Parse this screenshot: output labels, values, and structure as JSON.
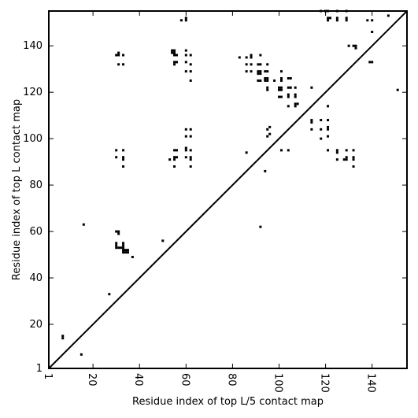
{
  "chart_data": {
    "type": "scatter",
    "title": "",
    "xlabel": "Residue index of top L/5 contact map",
    "ylabel": "Residue index of top L contact map",
    "xlim": [
      1,
      155
    ],
    "ylim": [
      1,
      155
    ],
    "xticks": [
      1,
      20,
      40,
      60,
      80,
      100,
      120,
      140
    ],
    "yticks": [
      1,
      20,
      40,
      60,
      80,
      100,
      120,
      140
    ],
    "grid": false,
    "diagonal": true,
    "marker": "square",
    "color": "#000000",
    "lower_points": [
      [
        7,
        14
      ],
      [
        7,
        15
      ],
      [
        15,
        7
      ],
      [
        16,
        63
      ],
      [
        27,
        33
      ],
      [
        30,
        60
      ],
      [
        31,
        60
      ],
      [
        31,
        59
      ],
      [
        30,
        55
      ],
      [
        30,
        54
      ],
      [
        30,
        53
      ],
      [
        31,
        53
      ],
      [
        32,
        53
      ],
      [
        33,
        55
      ],
      [
        33,
        54
      ],
      [
        33,
        53
      ],
      [
        33,
        52
      ],
      [
        34,
        52
      ],
      [
        35,
        52
      ],
      [
        34,
        51
      ],
      [
        33,
        51
      ],
      [
        35,
        51
      ],
      [
        37,
        49
      ],
      [
        50,
        56
      ],
      [
        92,
        62
      ]
    ],
    "upper_points": [
      [
        30,
        136
      ],
      [
        31,
        137
      ],
      [
        31,
        136
      ],
      [
        33,
        136
      ],
      [
        31,
        132
      ],
      [
        33,
        132
      ],
      [
        30,
        95
      ],
      [
        33,
        95
      ],
      [
        30,
        92
      ],
      [
        33,
        92
      ],
      [
        33,
        91
      ],
      [
        33,
        88
      ],
      [
        53,
        91
      ],
      [
        55,
        92
      ],
      [
        56,
        92
      ],
      [
        55,
        95
      ],
      [
        56,
        95
      ],
      [
        55,
        88
      ],
      [
        55,
        91
      ],
      [
        54,
        137
      ],
      [
        55,
        137
      ],
      [
        54,
        138
      ],
      [
        55,
        138
      ],
      [
        55,
        136
      ],
      [
        56,
        136
      ],
      [
        55,
        133
      ],
      [
        56,
        133
      ],
      [
        55,
        132
      ],
      [
        58,
        151
      ],
      [
        60,
        151
      ],
      [
        60,
        152
      ],
      [
        60,
        138
      ],
      [
        60,
        136
      ],
      [
        62,
        136
      ],
      [
        60,
        133
      ],
      [
        62,
        132
      ],
      [
        60,
        129
      ],
      [
        62,
        129
      ],
      [
        62,
        125
      ],
      [
        60,
        104
      ],
      [
        62,
        104
      ],
      [
        60,
        101
      ],
      [
        62,
        101
      ],
      [
        60,
        96
      ],
      [
        60,
        95
      ],
      [
        62,
        95
      ],
      [
        60,
        92
      ],
      [
        62,
        92
      ],
      [
        62,
        91
      ],
      [
        62,
        88
      ],
      [
        83,
        135
      ],
      [
        86,
        135
      ],
      [
        88,
        136
      ],
      [
        88,
        135
      ],
      [
        86,
        132
      ],
      [
        88,
        132
      ],
      [
        86,
        129
      ],
      [
        88,
        129
      ],
      [
        91,
        132
      ],
      [
        92,
        132
      ],
      [
        91,
        129
      ],
      [
        92,
        129
      ],
      [
        91,
        128
      ],
      [
        92,
        128
      ],
      [
        91,
        125
      ],
      [
        92,
        125
      ],
      [
        92,
        136
      ],
      [
        95,
        132
      ],
      [
        94,
        129
      ],
      [
        95,
        129
      ],
      [
        94,
        126
      ],
      [
        95,
        126
      ],
      [
        94,
        125
      ],
      [
        95,
        125
      ],
      [
        95,
        122
      ],
      [
        95,
        121
      ],
      [
        98,
        125
      ],
      [
        100,
        122
      ],
      [
        101,
        122
      ],
      [
        100,
        121
      ],
      [
        101,
        121
      ],
      [
        100,
        118
      ],
      [
        101,
        118
      ],
      [
        101,
        126
      ],
      [
        101,
        125
      ],
      [
        101,
        129
      ],
      [
        104,
        126
      ],
      [
        105,
        126
      ],
      [
        104,
        122
      ],
      [
        105,
        122
      ],
      [
        104,
        119
      ],
      [
        104,
        118
      ],
      [
        104,
        114
      ],
      [
        107,
        122
      ],
      [
        107,
        119
      ],
      [
        107,
        118
      ],
      [
        107,
        115
      ],
      [
        108,
        115
      ],
      [
        107,
        114
      ],
      [
        114,
        122
      ],
      [
        114,
        108
      ],
      [
        114,
        107
      ],
      [
        114,
        104
      ],
      [
        118,
        108
      ],
      [
        118,
        104
      ],
      [
        118,
        100
      ],
      [
        121,
        108
      ],
      [
        121,
        105
      ],
      [
        121,
        104
      ],
      [
        121,
        101
      ],
      [
        121,
        95
      ],
      [
        121,
        114
      ],
      [
        86,
        94
      ],
      [
        94,
        86
      ],
      [
        95,
        104
      ],
      [
        96,
        105
      ],
      [
        95,
        101
      ],
      [
        96,
        102
      ],
      [
        101,
        95
      ],
      [
        104,
        95
      ],
      [
        118,
        155
      ],
      [
        120,
        155
      ],
      [
        121,
        155
      ],
      [
        121,
        152
      ],
      [
        122,
        152
      ],
      [
        121,
        151
      ],
      [
        125,
        155
      ],
      [
        125,
        152
      ],
      [
        125,
        151
      ],
      [
        129,
        155
      ],
      [
        129,
        152
      ],
      [
        129,
        151
      ],
      [
        125,
        95
      ],
      [
        125,
        94
      ],
      [
        125,
        91
      ],
      [
        128,
        91
      ],
      [
        129,
        91
      ],
      [
        129,
        92
      ],
      [
        129,
        95
      ],
      [
        130,
        140
      ],
      [
        132,
        140
      ],
      [
        133,
        140
      ],
      [
        133,
        139
      ],
      [
        132,
        95
      ],
      [
        132,
        92
      ],
      [
        132,
        91
      ],
      [
        132,
        88
      ],
      [
        138,
        151
      ],
      [
        140,
        151
      ],
      [
        140,
        146
      ],
      [
        139,
        133
      ],
      [
        140,
        133
      ],
      [
        147,
        153
      ],
      [
        151,
        121
      ]
    ]
  }
}
